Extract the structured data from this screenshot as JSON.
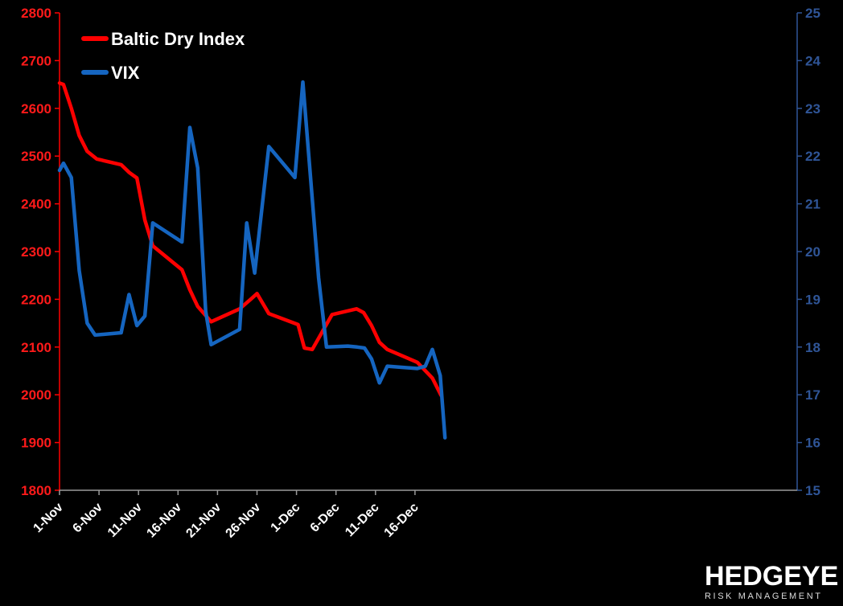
{
  "chart_data": {
    "type": "line",
    "title": "",
    "xlabel": "",
    "ylabel": "",
    "x_ticks": [
      "1-Nov",
      "6-Nov",
      "11-Nov",
      "16-Nov",
      "21-Nov",
      "26-Nov",
      "1-Dec",
      "6-Dec",
      "11-Dec",
      "16-Dec"
    ],
    "left_axis": {
      "min": 1800,
      "max": 2800,
      "step": 100,
      "ticks": [
        "1800",
        "1900",
        "2000",
        "2100",
        "2200",
        "2300",
        "2400",
        "2500",
        "2600",
        "2700",
        "2800"
      ]
    },
    "right_axis": {
      "min": 15,
      "max": 25,
      "step": 1,
      "ticks": [
        "15",
        "16",
        "17",
        "18",
        "19",
        "20",
        "21",
        "22",
        "23",
        "24",
        "25"
      ]
    },
    "series": [
      {
        "name": "Baltic Dry Index",
        "axis": "left",
        "color": "#ff0000",
        "points": [
          [
            0,
            2653
          ],
          [
            0.5,
            2650
          ],
          [
            1.5,
            2600
          ],
          [
            2.5,
            2543
          ],
          [
            3.5,
            2510
          ],
          [
            4.7,
            2494
          ],
          [
            7.8,
            2482
          ],
          [
            8.8,
            2466
          ],
          [
            9.8,
            2454
          ],
          [
            10.8,
            2366
          ],
          [
            11.8,
            2312
          ],
          [
            15.5,
            2262
          ],
          [
            16.5,
            2220
          ],
          [
            17.5,
            2185
          ],
          [
            19.2,
            2153
          ],
          [
            22.8,
            2180
          ],
          [
            24.2,
            2200
          ],
          [
            25.0,
            2212
          ],
          [
            26.5,
            2170
          ],
          [
            30.2,
            2147
          ],
          [
            31.0,
            2098
          ],
          [
            32.0,
            2095
          ],
          [
            34.5,
            2168
          ],
          [
            37.6,
            2180
          ],
          [
            38.5,
            2172
          ],
          [
            39.5,
            2145
          ],
          [
            40.5,
            2110
          ],
          [
            41.5,
            2095
          ],
          [
            45.3,
            2068
          ],
          [
            47.2,
            2035
          ],
          [
            48.3,
            1999
          ]
        ]
      },
      {
        "name": "VIX",
        "axis": "right",
        "color": "#1565c0",
        "points": [
          [
            0,
            21.7
          ],
          [
            0.5,
            21.85
          ],
          [
            1.5,
            21.55
          ],
          [
            2.5,
            19.6
          ],
          [
            3.5,
            18.5
          ],
          [
            4.5,
            18.25
          ],
          [
            7.8,
            18.3
          ],
          [
            8.8,
            19.1
          ],
          [
            9.8,
            18.45
          ],
          [
            10.8,
            18.65
          ],
          [
            11.8,
            20.6
          ],
          [
            15.5,
            20.2
          ],
          [
            16.5,
            22.6
          ],
          [
            17.5,
            21.75
          ],
          [
            18.5,
            18.75
          ],
          [
            19.2,
            18.05
          ],
          [
            22.8,
            18.37
          ],
          [
            23.7,
            20.6
          ],
          [
            24.7,
            19.55
          ],
          [
            26.5,
            22.2
          ],
          [
            29.8,
            21.55
          ],
          [
            30.8,
            23.55
          ],
          [
            32.8,
            19.45
          ],
          [
            33.8,
            18.0
          ],
          [
            36.5,
            18.02
          ],
          [
            37.7,
            18.0
          ],
          [
            38.6,
            17.98
          ],
          [
            39.5,
            17.75
          ],
          [
            40.5,
            17.25
          ],
          [
            41.5,
            17.6
          ],
          [
            45.3,
            17.55
          ],
          [
            46.3,
            17.6
          ],
          [
            47.2,
            17.95
          ],
          [
            48.2,
            17.4
          ],
          [
            48.8,
            16.1
          ]
        ]
      }
    ],
    "legend": {
      "position": "top-left"
    }
  },
  "logo": {
    "main": "HEDGEYE",
    "sub": "RISK MANAGEMENT"
  }
}
